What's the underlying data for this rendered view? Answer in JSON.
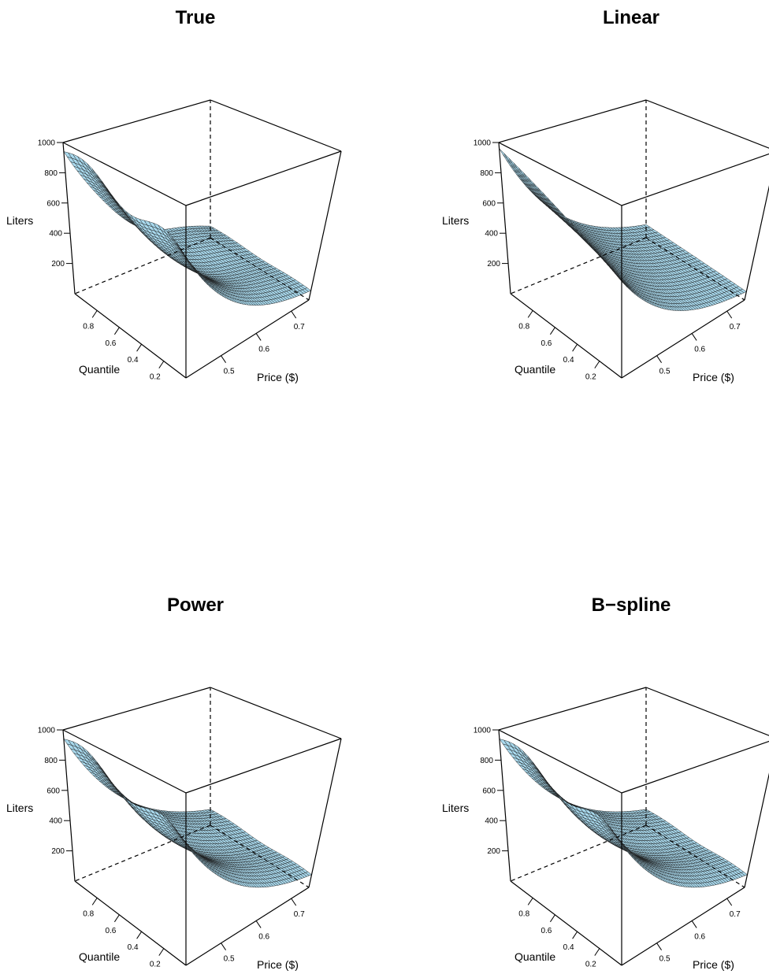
{
  "chart_data": [
    {
      "type": "surface",
      "title": "True",
      "model": "true",
      "xlabel": "Price ($)",
      "ylabel": "Quantile",
      "zlabel": "Liters",
      "xlim": [
        0.4,
        0.75
      ],
      "ylim": [
        0.0,
        1.0
      ],
      "zlim": [
        0,
        1000
      ],
      "x_ticks": [
        0.5,
        0.6,
        0.7
      ],
      "y_ticks": [
        0.2,
        0.4,
        0.6,
        0.8
      ],
      "z_ticks": [
        200,
        400,
        600,
        800,
        1000
      ],
      "surface_color": "#a8d8ec"
    },
    {
      "type": "surface",
      "title": "Linear",
      "model": "linear",
      "xlabel": "Price ($)",
      "ylabel": "Quantile",
      "zlabel": "Liters",
      "xlim": [
        0.4,
        0.75
      ],
      "ylim": [
        0.0,
        1.0
      ],
      "zlim": [
        0,
        1000
      ],
      "x_ticks": [
        0.5,
        0.6,
        0.7
      ],
      "y_ticks": [
        0.2,
        0.4,
        0.6,
        0.8
      ],
      "z_ticks": [
        200,
        400,
        600,
        800,
        1000
      ],
      "surface_color": "#a8d8ec"
    },
    {
      "type": "surface",
      "title": "Power",
      "model": "power",
      "xlabel": "Price ($)",
      "ylabel": "Quantile",
      "zlabel": "Liters",
      "xlim": [
        0.4,
        0.75
      ],
      "ylim": [
        0.0,
        1.0
      ],
      "zlim": [
        0,
        1000
      ],
      "x_ticks": [
        0.5,
        0.6,
        0.7
      ],
      "y_ticks": [
        0.2,
        0.4,
        0.6,
        0.8
      ],
      "z_ticks": [
        200,
        400,
        600,
        800,
        1000
      ],
      "surface_color": "#a8d8ec"
    },
    {
      "type": "surface",
      "title": "B−spline",
      "model": "bspline",
      "xlabel": "Price ($)",
      "ylabel": "Quantile",
      "zlabel": "Liters",
      "xlim": [
        0.4,
        0.75
      ],
      "ylim": [
        0.0,
        1.0
      ],
      "zlim": [
        0,
        1000
      ],
      "x_ticks": [
        0.5,
        0.6,
        0.7
      ],
      "y_ticks": [
        0.2,
        0.4,
        0.6,
        0.8
      ],
      "z_ticks": [
        200,
        400,
        600,
        800,
        1000
      ],
      "surface_color": "#a8d8ec"
    }
  ]
}
